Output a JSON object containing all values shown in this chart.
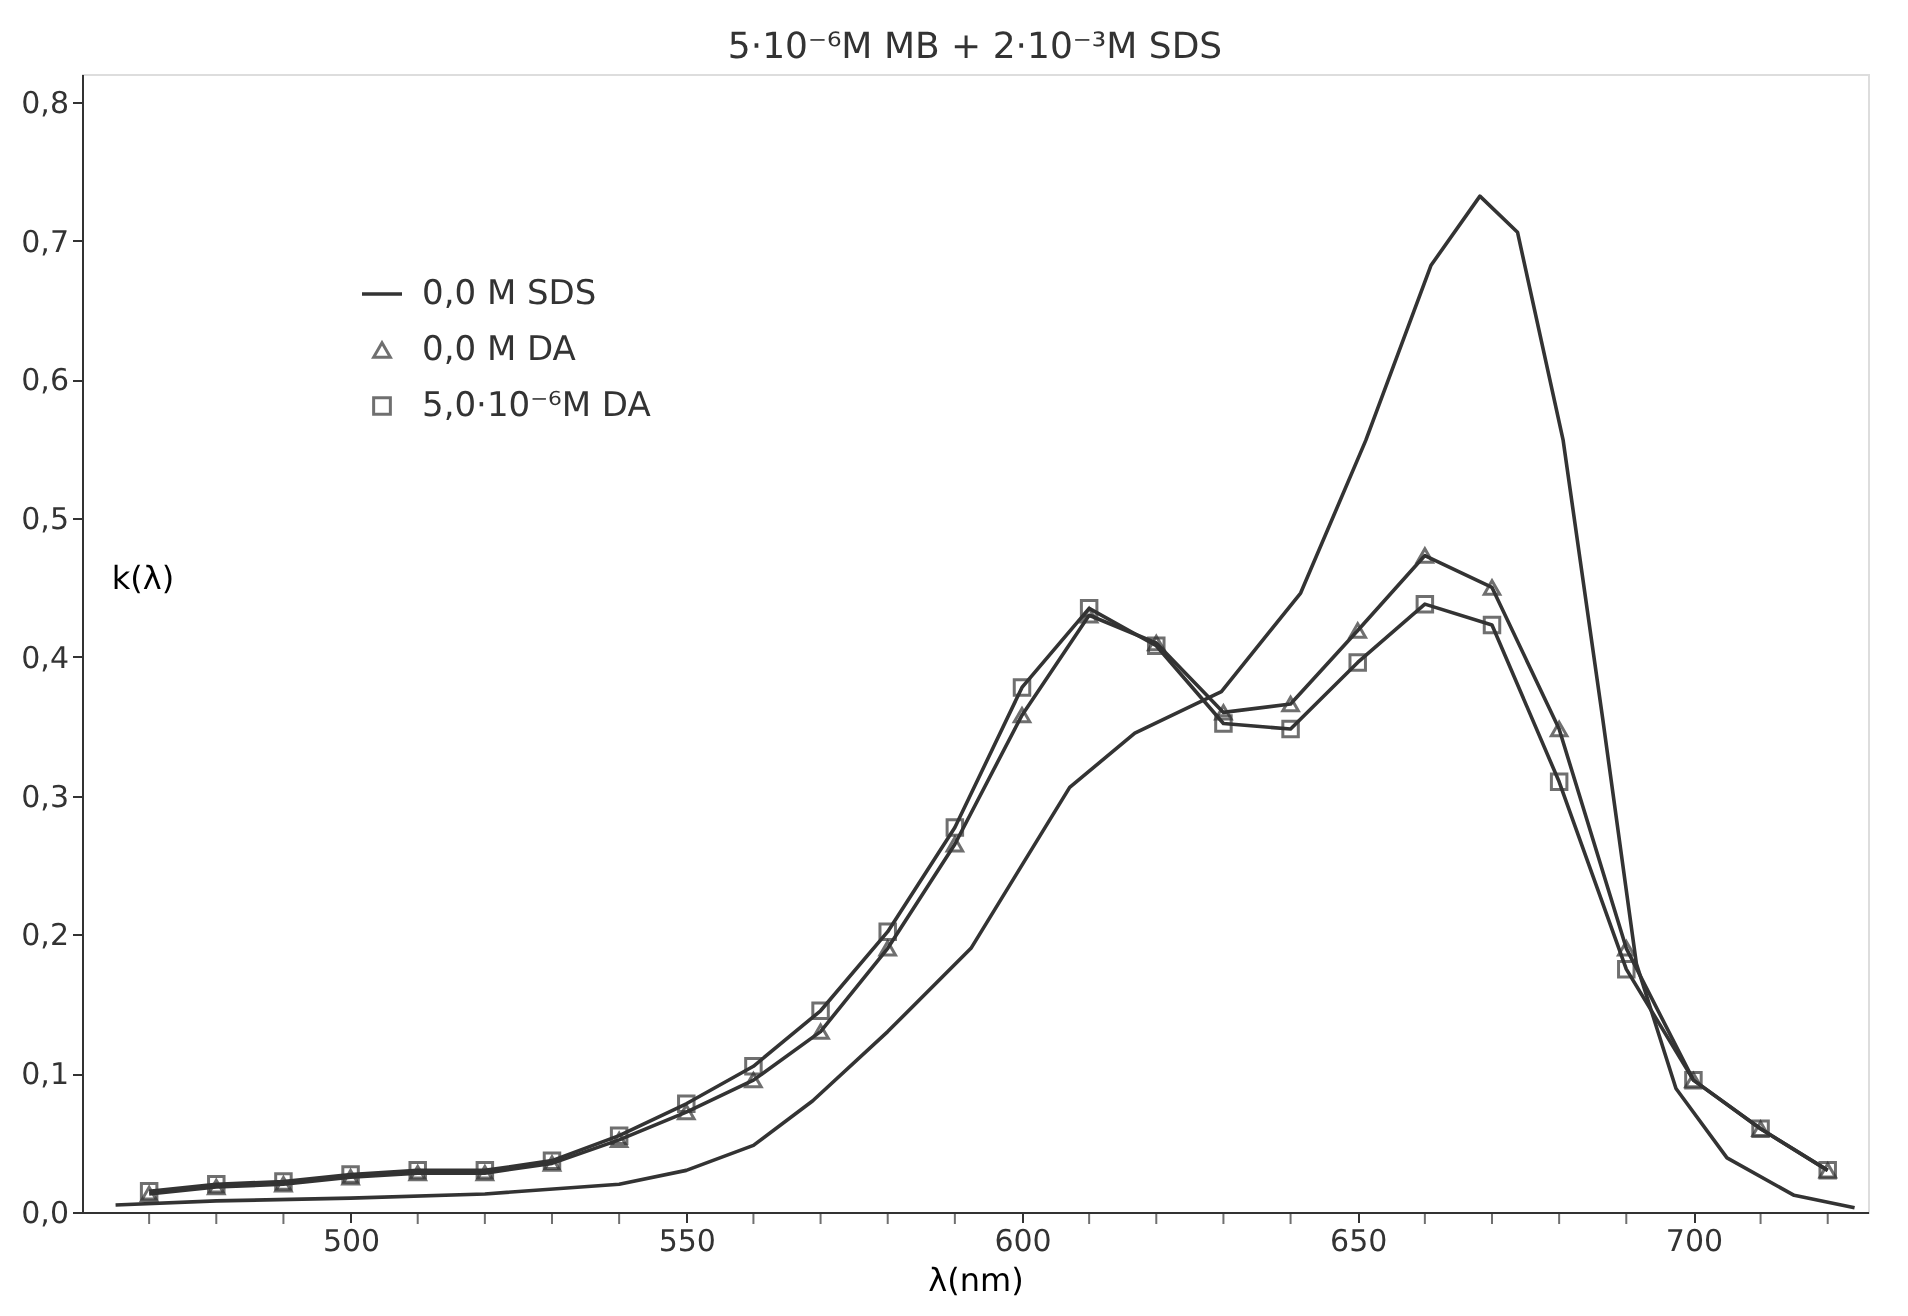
{
  "chart_data": {
    "type": "line",
    "title": "5·10⁻⁶M MB + 2·10⁻³M SDS",
    "xlabel": "λ(nm)",
    "ylabel": "k(λ)",
    "xlim": [
      460,
      726
    ],
    "ylim": [
      0,
      0.82
    ],
    "xticks": [
      {
        "value": 470,
        "label": null
      },
      {
        "value": 480,
        "label": null
      },
      {
        "value": 490,
        "label": null
      },
      500,
      {
        "value": 510,
        "label": null
      },
      {
        "value": 520,
        "label": null
      },
      {
        "value": 530,
        "label": null
      },
      {
        "value": 540,
        "label": null
      },
      550,
      {
        "value": 560,
        "label": null
      },
      {
        "value": 570,
        "label": null
      },
      {
        "value": 580,
        "label": null
      },
      {
        "value": 590,
        "label": null
      },
      600,
      {
        "value": 610,
        "label": null
      },
      {
        "value": 620,
        "label": null
      },
      {
        "value": 630,
        "label": null
      },
      {
        "value": 640,
        "label": null
      },
      650,
      {
        "value": 660,
        "label": null
      },
      {
        "value": 670,
        "label": null
      },
      {
        "value": 680,
        "label": null
      },
      {
        "value": 690,
        "label": null
      },
      700,
      {
        "value": 710,
        "label": null
      },
      {
        "value": 720,
        "label": null
      }
    ],
    "yticks": [
      {
        "value": 0,
        "label": "0,0"
      },
      {
        "value": 0.1,
        "label": "0,1"
      },
      {
        "value": 0.2,
        "label": "0,2"
      },
      {
        "value": 0.3,
        "label": "0,3"
      },
      {
        "value": 0.4,
        "label": "0,4"
      },
      {
        "value": 0.5,
        "label": "0,5"
      },
      {
        "value": 0.6,
        "label": "0,6"
      },
      {
        "value": 0.7,
        "label": "0,7"
      },
      {
        "value": 0.8,
        "label": "0,8"
      }
    ],
    "grid": false,
    "legend": "top left",
    "line_style": "solid",
    "series": [
      {
        "name": "0,0  M  SDS",
        "color": "#333333",
        "marker": "none",
        "x": [
          465,
          480,
          500,
          520,
          540,
          550,
          560,
          568.8,
          580,
          592.4,
          607.1,
          616.8,
          629.7,
          641.5,
          651.2,
          660.9,
          668.2,
          673.8,
          680.6,
          686.5,
          691.5,
          697.4,
          705,
          715,
          724
        ],
        "values": [
          0.005,
          0.008,
          0.01,
          0.013,
          0.02,
          0.03,
          0.048,
          0.08,
          0.13,
          0.19,
          0.306,
          0.345,
          0.375,
          0.446,
          0.556,
          0.682,
          0.732,
          0.706,
          0.556,
          0.355,
          0.179,
          0.089,
          0.039,
          0.012,
          0.003
        ]
      },
      {
        "name": "0,0  M  DA",
        "color": "#333333",
        "marker": "triangle",
        "x": [
          470,
          480,
          490,
          500,
          510,
          520,
          530,
          540,
          550,
          560,
          570,
          580,
          590,
          600,
          610,
          620,
          630,
          640,
          650,
          660,
          670,
          680,
          690,
          700,
          710,
          720
        ],
        "values": [
          0.013,
          0.018,
          0.02,
          0.025,
          0.028,
          0.028,
          0.035,
          0.052,
          0.072,
          0.095,
          0.13,
          0.19,
          0.265,
          0.358,
          0.43,
          0.41,
          0.36,
          0.366,
          0.419,
          0.473,
          0.45,
          0.348,
          0.19,
          0.095,
          0.06,
          0.03
        ]
      },
      {
        "name": "5,0·10⁻⁶M DA",
        "color": "#333333",
        "marker": "square",
        "x": [
          470,
          480,
          490,
          500,
          510,
          520,
          530,
          540,
          550,
          560,
          570,
          580,
          590,
          600,
          610,
          620,
          630,
          640,
          650,
          660,
          670,
          680,
          690,
          700,
          710,
          720
        ],
        "values": [
          0.015,
          0.02,
          0.022,
          0.027,
          0.03,
          0.03,
          0.037,
          0.055,
          0.078,
          0.105,
          0.145,
          0.202,
          0.277,
          0.378,
          0.435,
          0.408,
          0.352,
          0.348,
          0.396,
          0.438,
          0.423,
          0.31,
          0.175,
          0.095,
          0.06,
          0.03
        ]
      }
    ]
  }
}
